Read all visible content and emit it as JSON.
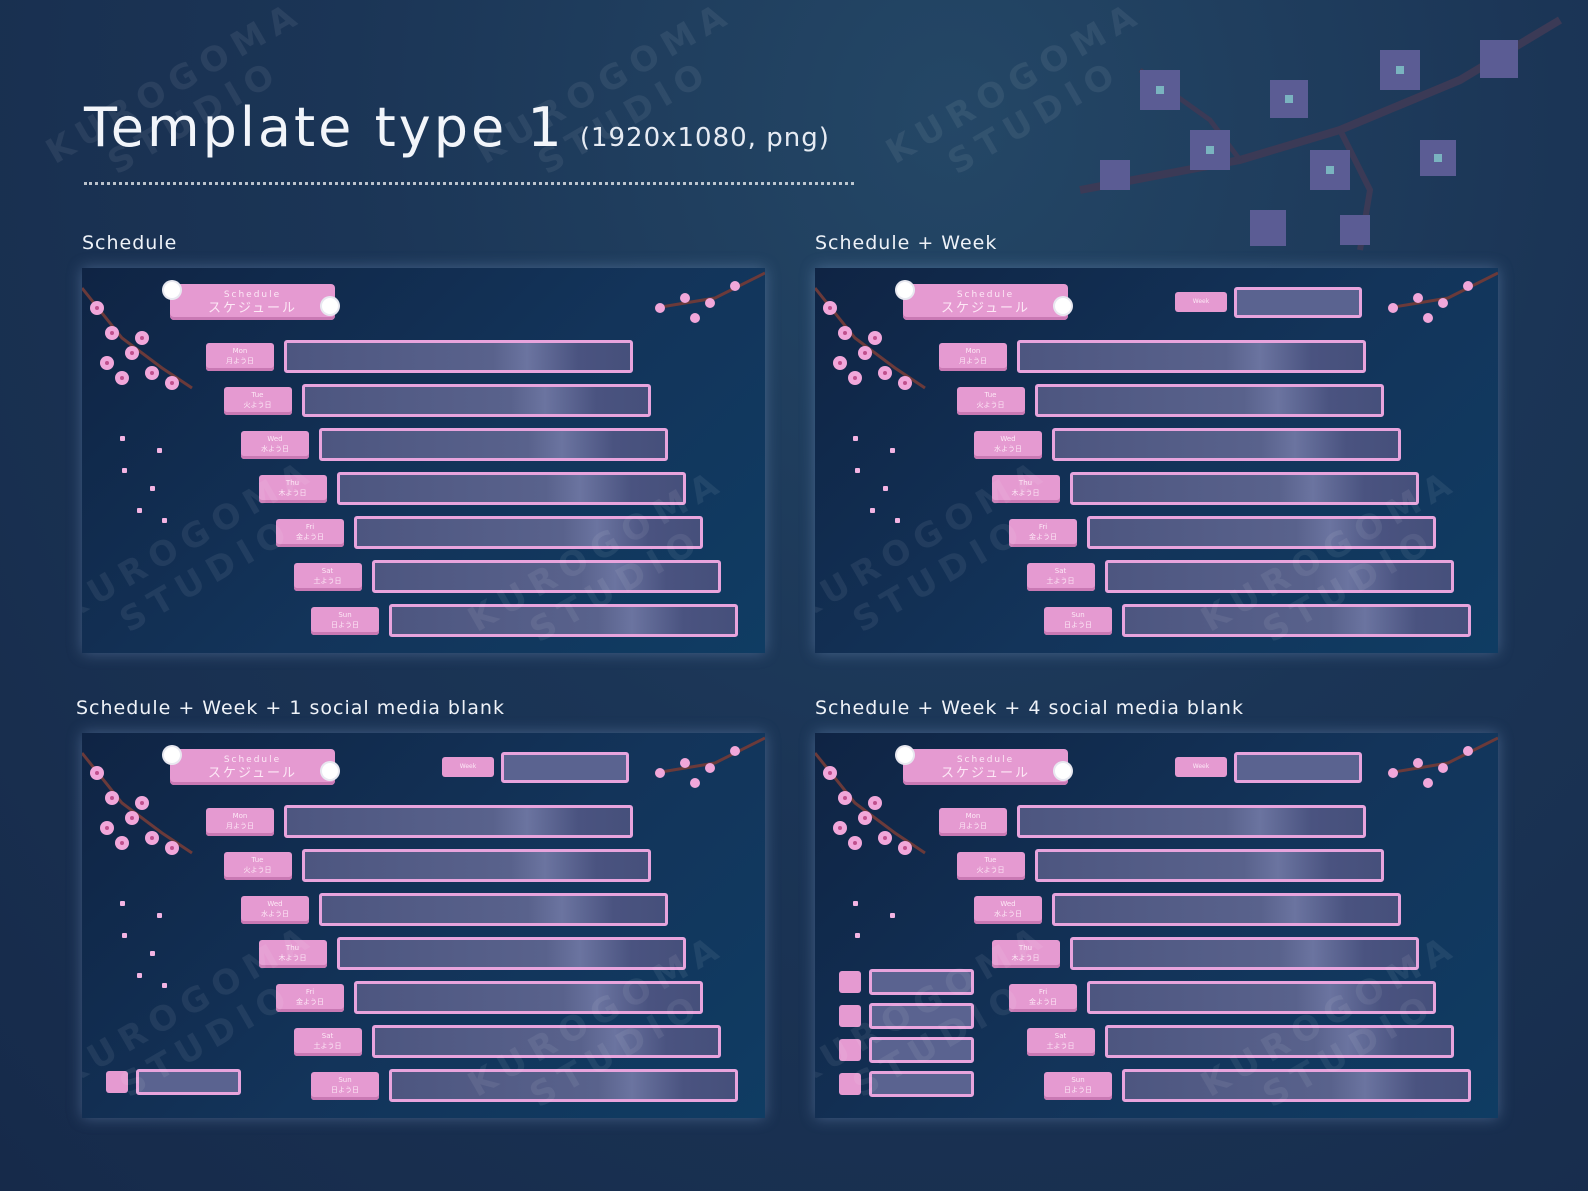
{
  "header": {
    "title": "Template type 1",
    "subtitle": "(1920x1080, png)"
  },
  "watermark": "KUROGOMA\nSTUDIO",
  "sections": [
    {
      "label": "Schedule",
      "week": false,
      "social": 0
    },
    {
      "label": "Schedule + Week",
      "week": true,
      "social": 0
    },
    {
      "label": "Schedule + Week + 1 social media blank",
      "week": true,
      "social": 1
    },
    {
      "label": "Schedule + Week + 4 social media blank",
      "week": true,
      "social": 4
    }
  ],
  "template": {
    "header_en": "Schedule",
    "header_jp": "スケジュール",
    "week_label": "Week",
    "days": [
      {
        "en": "Mon",
        "jp": "月よう日"
      },
      {
        "en": "Tue",
        "jp": "火よう日"
      },
      {
        "en": "Wed",
        "jp": "水よう日"
      },
      {
        "en": "Thu",
        "jp": "木よう日"
      },
      {
        "en": "Fri",
        "jp": "金よう日"
      },
      {
        "en": "Sat",
        "jp": "土よう日"
      },
      {
        "en": "Sun",
        "jp": "日よう日"
      }
    ]
  },
  "colors": {
    "background": "#1b3556",
    "accent_pink": "#e59ad1",
    "bar_fill": "#59628c"
  }
}
